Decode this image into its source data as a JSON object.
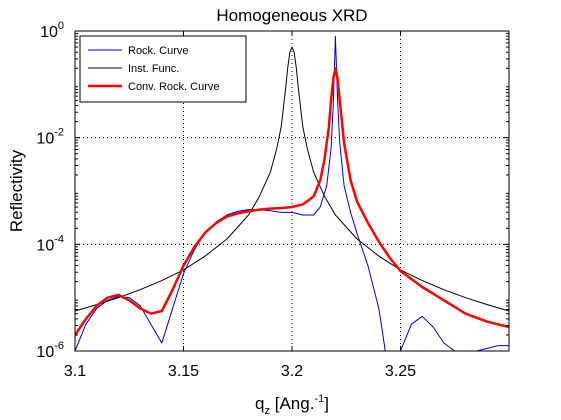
{
  "chart_data": {
    "type": "line",
    "title": "Homogeneous XRD",
    "xlabel": {
      "base": "q",
      "sub": "z",
      "pre": " [Ang.",
      "sup": "-1",
      "post": "]"
    },
    "ylabel": "Reflectivity",
    "xlim": [
      3.1,
      3.3
    ],
    "ylim_log10": [
      -6,
      0
    ],
    "yscale": "log",
    "grid": "dotted",
    "legend_position": "top-left",
    "x_ticks": [
      {
        "value": 3.1,
        "label": "3.1"
      },
      {
        "value": 3.15,
        "label": "3.15"
      },
      {
        "value": 3.2,
        "label": "3.2"
      },
      {
        "value": 3.25,
        "label": "3.25"
      }
    ],
    "y_ticks": [
      {
        "exp": 0,
        "base": "10",
        "sup": "0"
      },
      {
        "exp": -2,
        "base": "10",
        "sup": "-2"
      },
      {
        "exp": -4,
        "base": "10",
        "sup": "-4"
      },
      {
        "exp": -6,
        "base": "10",
        "sup": "-6"
      }
    ],
    "series": [
      {
        "name": "Rock. Curve",
        "color": "#0000cc",
        "width": 1,
        "x": [
          3.1,
          3.105,
          3.11,
          3.115,
          3.12,
          3.125,
          3.13,
          3.135,
          3.14,
          3.145,
          3.15,
          3.155,
          3.16,
          3.165,
          3.17,
          3.175,
          3.18,
          3.185,
          3.19,
          3.195,
          3.2,
          3.205,
          3.21,
          3.213,
          3.216,
          3.218,
          3.219,
          3.22,
          3.221,
          3.222,
          3.224,
          3.227,
          3.23,
          3.235,
          3.24,
          3.243,
          3.245,
          3.25,
          3.255,
          3.26,
          3.265,
          3.27,
          3.275,
          3.28,
          3.285,
          3.29,
          3.295,
          3.3
        ],
        "log10y": [
          -6.0,
          -5.5,
          -5.2,
          -5.05,
          -4.98,
          -5.0,
          -5.15,
          -5.5,
          -5.85,
          -5.2,
          -4.55,
          -4.1,
          -3.78,
          -3.58,
          -3.45,
          -3.38,
          -3.35,
          -3.35,
          -3.37,
          -3.4,
          -3.4,
          -3.45,
          -3.45,
          -3.3,
          -2.9,
          -2.2,
          -1.4,
          -0.1,
          -1.3,
          -2.1,
          -2.9,
          -3.4,
          -3.8,
          -4.4,
          -5.2,
          -6.0,
          -6.0,
          -6.0,
          -5.5,
          -5.35,
          -5.55,
          -5.85,
          -6.0,
          -6.0,
          -6.0,
          -5.95,
          -5.9,
          -5.9
        ]
      },
      {
        "name": "Inst. Func.",
        "color": "#000000",
        "width": 1,
        "x": [
          3.1,
          3.11,
          3.12,
          3.13,
          3.14,
          3.15,
          3.16,
          3.17,
          3.18,
          3.185,
          3.19,
          3.193,
          3.195,
          3.197,
          3.198,
          3.199,
          3.2,
          3.201,
          3.202,
          3.203,
          3.205,
          3.207,
          3.21,
          3.215,
          3.22,
          3.23,
          3.24,
          3.25,
          3.26,
          3.27,
          3.28,
          3.29,
          3.3
        ],
        "log10y": [
          -5.25,
          -5.13,
          -5.0,
          -4.85,
          -4.68,
          -4.48,
          -4.22,
          -3.9,
          -3.45,
          -3.1,
          -2.65,
          -2.2,
          -1.8,
          -1.1,
          -0.7,
          -0.4,
          -0.3,
          -0.4,
          -0.7,
          -1.1,
          -1.8,
          -2.2,
          -2.65,
          -3.1,
          -3.45,
          -3.9,
          -4.22,
          -4.48,
          -4.68,
          -4.85,
          -5.0,
          -5.13,
          -5.25
        ]
      },
      {
        "name": "Conv. Rock. Curve",
        "color": "#ff0000",
        "width": 2.5,
        "x": [
          3.1,
          3.105,
          3.11,
          3.115,
          3.12,
          3.125,
          3.13,
          3.135,
          3.14,
          3.145,
          3.15,
          3.155,
          3.16,
          3.165,
          3.17,
          3.175,
          3.18,
          3.185,
          3.19,
          3.195,
          3.2,
          3.205,
          3.21,
          3.213,
          3.215,
          3.217,
          3.218,
          3.219,
          3.22,
          3.221,
          3.222,
          3.224,
          3.227,
          3.23,
          3.235,
          3.24,
          3.245,
          3.25,
          3.26,
          3.27,
          3.28,
          3.29,
          3.3
        ],
        "log10y": [
          -5.7,
          -5.4,
          -5.15,
          -5.0,
          -4.95,
          -5.05,
          -5.2,
          -5.3,
          -5.25,
          -4.85,
          -4.4,
          -4.05,
          -3.78,
          -3.6,
          -3.48,
          -3.42,
          -3.38,
          -3.35,
          -3.33,
          -3.32,
          -3.3,
          -3.25,
          -3.1,
          -2.8,
          -2.4,
          -1.8,
          -1.3,
          -0.9,
          -0.7,
          -0.9,
          -1.3,
          -2.1,
          -2.8,
          -3.2,
          -3.6,
          -3.95,
          -4.25,
          -4.5,
          -4.8,
          -5.05,
          -5.3,
          -5.45,
          -5.55
        ]
      }
    ]
  }
}
